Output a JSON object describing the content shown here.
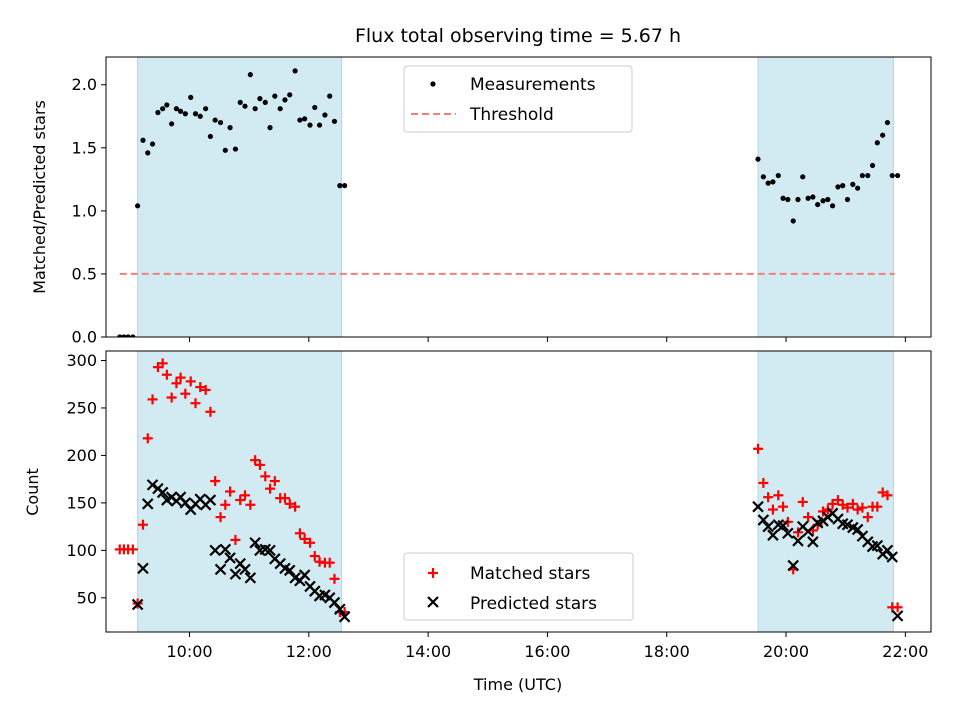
{
  "chart_data": [
    {
      "type": "scatter",
      "title": "Flux total observing time = 5.67 h",
      "xlabel": "",
      "ylabel": "Matched/Predicted stars",
      "ylim": [
        0,
        2.22
      ],
      "yticks": [
        "0.0",
        "0.5",
        "1.0",
        "1.5",
        "2.0"
      ],
      "ytick_values": [
        0,
        0.5,
        1.0,
        1.5,
        2.0
      ],
      "xticks_labeled": false,
      "legend_position": "top-center",
      "shaded_intervals": [
        {
          "start_h": 9.13,
          "end_h": 12.55
        },
        {
          "start_h": 19.53,
          "end_h": 21.8
        }
      ],
      "colors": {
        "measurements": "#000000",
        "threshold": "#f08080",
        "shade": "#add8e6"
      },
      "series": [
        {
          "name": "Measurements",
          "marker": "dot",
          "x_hours": [
            8.83,
            8.9,
            8.97,
            9.05,
            9.13,
            9.22,
            9.3,
            9.38,
            9.47,
            9.55,
            9.62,
            9.7,
            9.78,
            9.85,
            9.93,
            10.02,
            10.1,
            10.18,
            10.27,
            10.35,
            10.43,
            10.52,
            10.6,
            10.68,
            10.77,
            10.85,
            10.93,
            11.02,
            11.1,
            11.18,
            11.27,
            11.35,
            11.43,
            11.52,
            11.6,
            11.68,
            11.77,
            11.85,
            11.93,
            12.02,
            12.1,
            12.18,
            12.27,
            12.35,
            12.43,
            12.52,
            12.6,
            19.53,
            19.62,
            19.7,
            19.78,
            19.87,
            19.95,
            20.03,
            20.12,
            20.2,
            20.28,
            20.37,
            20.45,
            20.53,
            20.62,
            20.7,
            20.78,
            20.87,
            20.95,
            21.03,
            21.12,
            21.2,
            21.28,
            21.37,
            21.45,
            21.53,
            21.62,
            21.7,
            21.78,
            21.87
          ],
          "values": [
            0.0,
            0.0,
            0.0,
            0.0,
            1.04,
            1.56,
            1.46,
            1.53,
            1.78,
            1.81,
            1.84,
            1.69,
            1.81,
            1.79,
            1.77,
            1.9,
            1.77,
            1.75,
            1.81,
            1.59,
            1.72,
            1.7,
            1.48,
            1.66,
            1.49,
            1.86,
            1.83,
            2.08,
            1.81,
            1.89,
            1.86,
            1.66,
            1.91,
            1.81,
            1.88,
            1.92,
            2.11,
            1.72,
            1.73,
            1.68,
            1.82,
            1.68,
            1.76,
            1.91,
            1.71,
            1.2,
            1.2,
            1.41,
            1.27,
            1.22,
            1.23,
            1.28,
            1.1,
            1.09,
            0.92,
            1.09,
            1.27,
            1.1,
            1.11,
            1.05,
            1.08,
            1.09,
            1.04,
            1.19,
            1.2,
            1.09,
            1.21,
            1.18,
            1.28,
            1.28,
            1.36,
            1.54,
            1.6,
            1.7,
            1.28,
            1.28
          ]
        },
        {
          "name": "Threshold",
          "marker": "dashed-line",
          "x_hours": [
            8.83,
            21.82
          ],
          "values": [
            0.5,
            0.5
          ]
        }
      ]
    },
    {
      "type": "scatter",
      "title": "",
      "xlabel": "Time (UTC)",
      "ylabel": "Count",
      "ylim": [
        14,
        310
      ],
      "yticks": [
        "50",
        "100",
        "150",
        "200",
        "250",
        "300"
      ],
      "ytick_values": [
        50,
        100,
        150,
        200,
        250,
        300
      ],
      "xlim_hours": [
        8.6,
        22.43
      ],
      "xticks": [
        "10:00",
        "12:00",
        "14:00",
        "16:00",
        "18:00",
        "20:00",
        "22:00"
      ],
      "xtick_hours": [
        10,
        12,
        14,
        16,
        18,
        20,
        22
      ],
      "legend_position": "lower-center",
      "shaded_intervals": [
        {
          "start_h": 9.13,
          "end_h": 12.55
        },
        {
          "start_h": 19.53,
          "end_h": 21.8
        }
      ],
      "colors": {
        "matched": "#ff0000",
        "predicted": "#000000",
        "shade": "#add8e6"
      },
      "series": [
        {
          "name": "Matched stars",
          "marker": "plus",
          "x_hours": [
            8.83,
            8.9,
            8.97,
            9.05,
            9.13,
            9.22,
            9.3,
            9.38,
            9.47,
            9.55,
            9.62,
            9.7,
            9.78,
            9.85,
            9.93,
            10.02,
            10.1,
            10.18,
            10.27,
            10.35,
            10.43,
            10.52,
            10.6,
            10.68,
            10.77,
            10.85,
            10.93,
            11.02,
            11.1,
            11.18,
            11.27,
            11.35,
            11.43,
            11.52,
            11.6,
            11.68,
            11.77,
            11.85,
            11.93,
            12.02,
            12.1,
            12.18,
            12.27,
            12.35,
            12.43,
            12.52,
            12.6,
            19.53,
            19.62,
            19.7,
            19.78,
            19.87,
            19.95,
            20.03,
            20.12,
            20.2,
            20.28,
            20.37,
            20.45,
            20.53,
            20.62,
            20.7,
            20.78,
            20.87,
            20.95,
            21.03,
            21.12,
            21.2,
            21.28,
            21.37,
            21.45,
            21.53,
            21.62,
            21.7,
            21.78,
            21.87
          ],
          "values": [
            101,
            101,
            101,
            101,
            44,
            127,
            218,
            259,
            293,
            297,
            285,
            261,
            276,
            282,
            265,
            278,
            255,
            272,
            269,
            246,
            173,
            135,
            148,
            162,
            111,
            153,
            158,
            148,
            195,
            190,
            178,
            165,
            173,
            155,
            155,
            149,
            146,
            118,
            112,
            108,
            94,
            88,
            87,
            87,
            70,
            35,
            35,
            207,
            171,
            156,
            143,
            158,
            146,
            130,
            80,
            119,
            151,
            135,
            121,
            127,
            141,
            143,
            149,
            153,
            148,
            145,
            149,
            143,
            145,
            135,
            146,
            146,
            161,
            158,
            40,
            40
          ]
        },
        {
          "name": "Predicted stars",
          "marker": "x",
          "x_hours": [
            9.13,
            9.22,
            9.3,
            9.38,
            9.47,
            9.55,
            9.62,
            9.7,
            9.78,
            9.85,
            9.93,
            10.02,
            10.1,
            10.18,
            10.27,
            10.35,
            10.43,
            10.52,
            10.6,
            10.68,
            10.77,
            10.85,
            10.93,
            11.02,
            11.1,
            11.18,
            11.27,
            11.35,
            11.43,
            11.52,
            11.6,
            11.68,
            11.77,
            11.85,
            11.93,
            12.02,
            12.1,
            12.18,
            12.27,
            12.35,
            12.43,
            12.52,
            12.6,
            19.53,
            19.62,
            19.7,
            19.78,
            19.87,
            19.95,
            20.03,
            20.12,
            20.2,
            20.28,
            20.37,
            20.45,
            20.53,
            20.62,
            20.7,
            20.78,
            20.87,
            20.95,
            21.03,
            21.12,
            21.2,
            21.28,
            21.37,
            21.45,
            21.53,
            21.62,
            21.7,
            21.78,
            21.87
          ],
          "values": [
            43,
            81,
            149,
            169,
            165,
            161,
            153,
            156,
            152,
            156,
            150,
            143,
            149,
            154,
            148,
            153,
            100,
            80,
            101,
            92,
            75,
            86,
            80,
            71,
            108,
            100,
            101,
            100,
            91,
            86,
            81,
            79,
            71,
            68,
            74,
            62,
            57,
            52,
            53,
            50,
            45,
            38,
            30,
            146,
            132,
            125,
            116,
            127,
            126,
            118,
            84,
            110,
            125,
            120,
            109,
            129,
            131,
            135,
            139,
            133,
            128,
            127,
            124,
            122,
            115,
            109,
            104,
            105,
            96,
            100,
            93,
            31
          ]
        }
      ]
    }
  ]
}
